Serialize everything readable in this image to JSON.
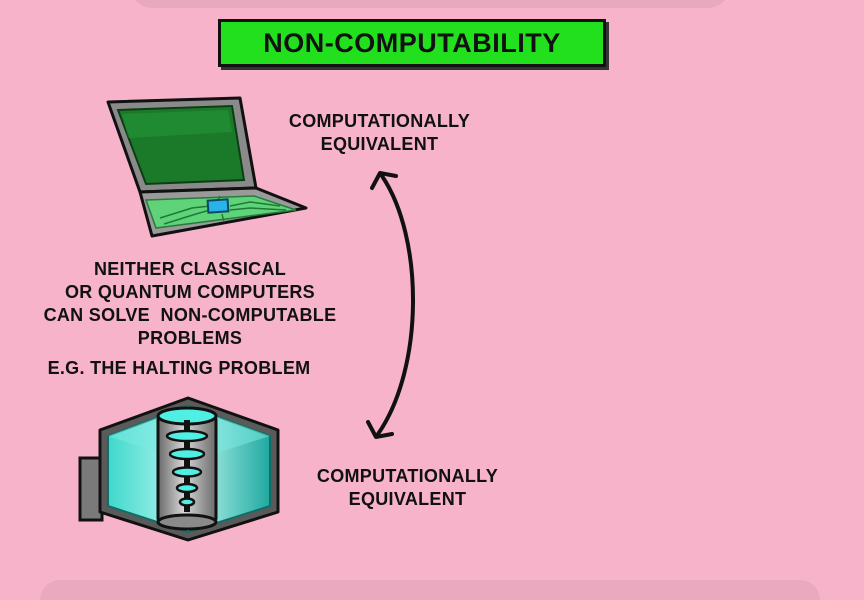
{
  "title": "NON-COMPUTABILITY",
  "labels": {
    "top": [
      "COMPUTATIONALLY",
      "EQUIVALENT"
    ],
    "bottom": [
      "COMPUTATIONALLY",
      "EQUIVALENT"
    ]
  },
  "statement": [
    "NEITHER CLASSICAL",
    "OR QUANTUM COMPUTERS",
    "CAN SOLVE  NON-COMPUTABLE",
    "PROBLEMS"
  ],
  "example": "E.G. THE HALTING PROBLEM",
  "colors": {
    "background": "#f7b3c9",
    "title_box": "#22e01e",
    "laptop_screen": "#1a8a2e",
    "quantum_glow": "#2ee6d6"
  },
  "icons": [
    "laptop-icon",
    "quantum-computer-icon",
    "double-arrow-icon"
  ]
}
